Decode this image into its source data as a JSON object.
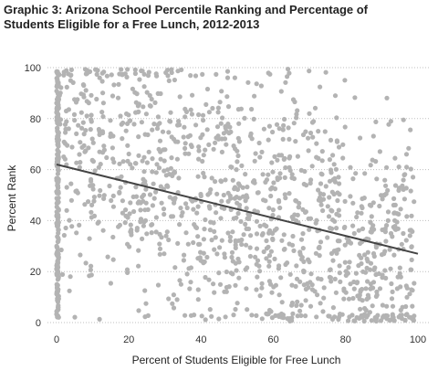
{
  "chart_data": {
    "type": "scatter",
    "title_line1": "Graphic 3: Arizona School Percentile Ranking and Percentage of",
    "title_line2": "Students Eligible for a Free Lunch, 2012-2013",
    "xlabel": "Percent of Students Eligible for Free Lunch",
    "ylabel": "Percent Rank",
    "xlim": [
      0,
      100
    ],
    "ylim": [
      0,
      100
    ],
    "x_ticks": [
      "0",
      "20",
      "40",
      "60",
      "80",
      "100"
    ],
    "y_ticks": [
      "0",
      "20",
      "40",
      "60",
      "80",
      "100"
    ],
    "grid": "horizontal-dotted",
    "point_count_estimate": 1500,
    "trendline": {
      "x": [
        0,
        100
      ],
      "y": [
        62,
        27
      ]
    },
    "colors": {
      "points": "#b3b3b3",
      "trendline": "#444444",
      "grid": "#bfbfbf"
    }
  }
}
